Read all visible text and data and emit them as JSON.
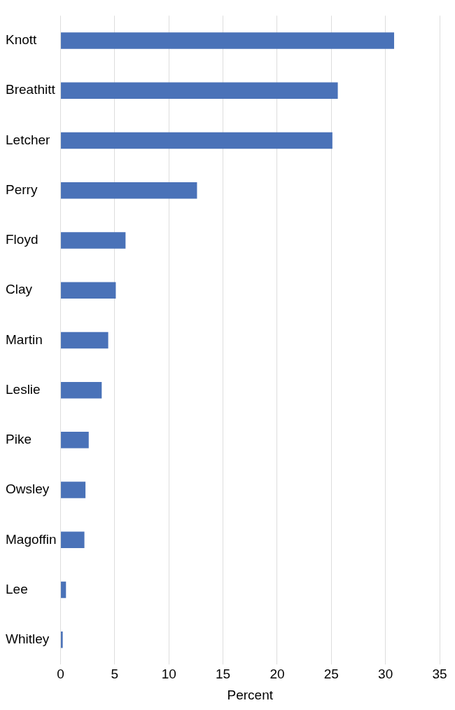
{
  "chart_data": {
    "type": "bar",
    "orientation": "horizontal",
    "xlabel": "Percent",
    "categories": [
      "Knott",
      "Breathitt",
      "Letcher",
      "Perry",
      "Floyd",
      "Clay",
      "Martin",
      "Leslie",
      "Pike",
      "Owsley",
      "Magoffin",
      "Lee",
      "Whitley"
    ],
    "values": [
      30.8,
      25.6,
      25.1,
      12.6,
      6.0,
      5.1,
      4.4,
      3.8,
      2.6,
      2.3,
      2.2,
      0.5,
      0.2
    ],
    "color": "#4a72b8",
    "xlim": [
      0,
      35
    ],
    "xticks": [
      0,
      5,
      10,
      15,
      20,
      25,
      30,
      35
    ],
    "grid": "x",
    "legend": false
  }
}
